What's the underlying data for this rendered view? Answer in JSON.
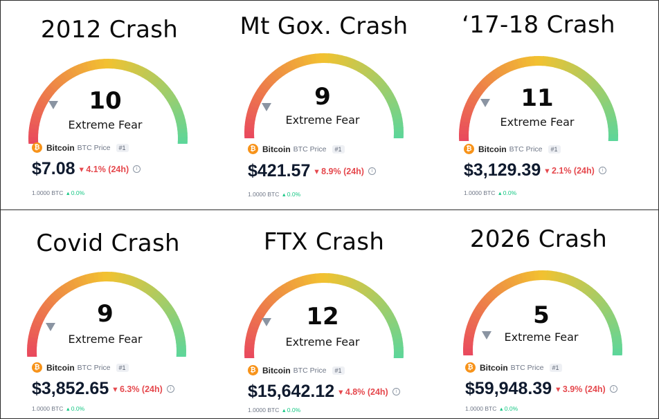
{
  "panels": [
    {
      "title": "2012 Crash",
      "value": "10",
      "label": "Extreme Fear",
      "coin": "Bitcoin",
      "coin_sub": "BTC Price",
      "rank": "#1",
      "price": "$7.08",
      "change": "4.1% (24h)",
      "btc_amount": "1.0000 BTC",
      "btc_change": "0.0%"
    },
    {
      "title": "Mt Gox. Crash",
      "value": "9",
      "label": "Extreme Fear",
      "coin": "Bitcoin",
      "coin_sub": "BTC Price",
      "rank": "#1",
      "price": "$421.57",
      "change": "8.9% (24h)",
      "btc_amount": "1.0000 BTC",
      "btc_change": "0.0%"
    },
    {
      "title": "‘17-18 Crash",
      "value": "11",
      "label": "Extreme Fear",
      "coin": "Bitcoin",
      "coin_sub": "BTC Price",
      "rank": "#1",
      "price": "$3,129.39",
      "change": "2.1% (24h)",
      "btc_amount": "1.0000 BTC",
      "btc_change": "0.0%"
    },
    {
      "title": "Covid Crash",
      "value": "9",
      "label": "Extreme Fear",
      "coin": "Bitcoin",
      "coin_sub": "BTC Price",
      "rank": "#1",
      "price": "$3,852.65",
      "change": "6.3% (24h)",
      "btc_amount": "1.0000 BTC",
      "btc_change": "0.0%"
    },
    {
      "title": "FTX Crash",
      "value": "12",
      "label": "Extreme Fear",
      "coin": "Bitcoin",
      "coin_sub": "BTC Price",
      "rank": "#1",
      "price": "$15,642.12",
      "change": "4.8% (24h)",
      "btc_amount": "1.0000 BTC",
      "btc_change": "0.0%"
    },
    {
      "title": "2026 Crash",
      "value": "5",
      "label": "Extreme Fear",
      "coin": "Bitcoin",
      "coin_sub": "BTC Price",
      "rank": "#1",
      "price": "$59,948.39",
      "change": "3.9% (24h)",
      "btc_amount": "1.0000 BTC",
      "btc_change": "0.0%"
    }
  ],
  "icons": {
    "coin": "bitcoin-icon",
    "down": "down-triangle-icon",
    "up": "up-triangle-icon",
    "info": "info-icon",
    "pointer": "gauge-pointer-icon"
  },
  "colors": {
    "down": "#e5484d",
    "up": "#16c784",
    "gauge_red": "#e9495e",
    "gauge_yellow": "#f2c230",
    "gauge_green": "#5dd69a"
  }
}
